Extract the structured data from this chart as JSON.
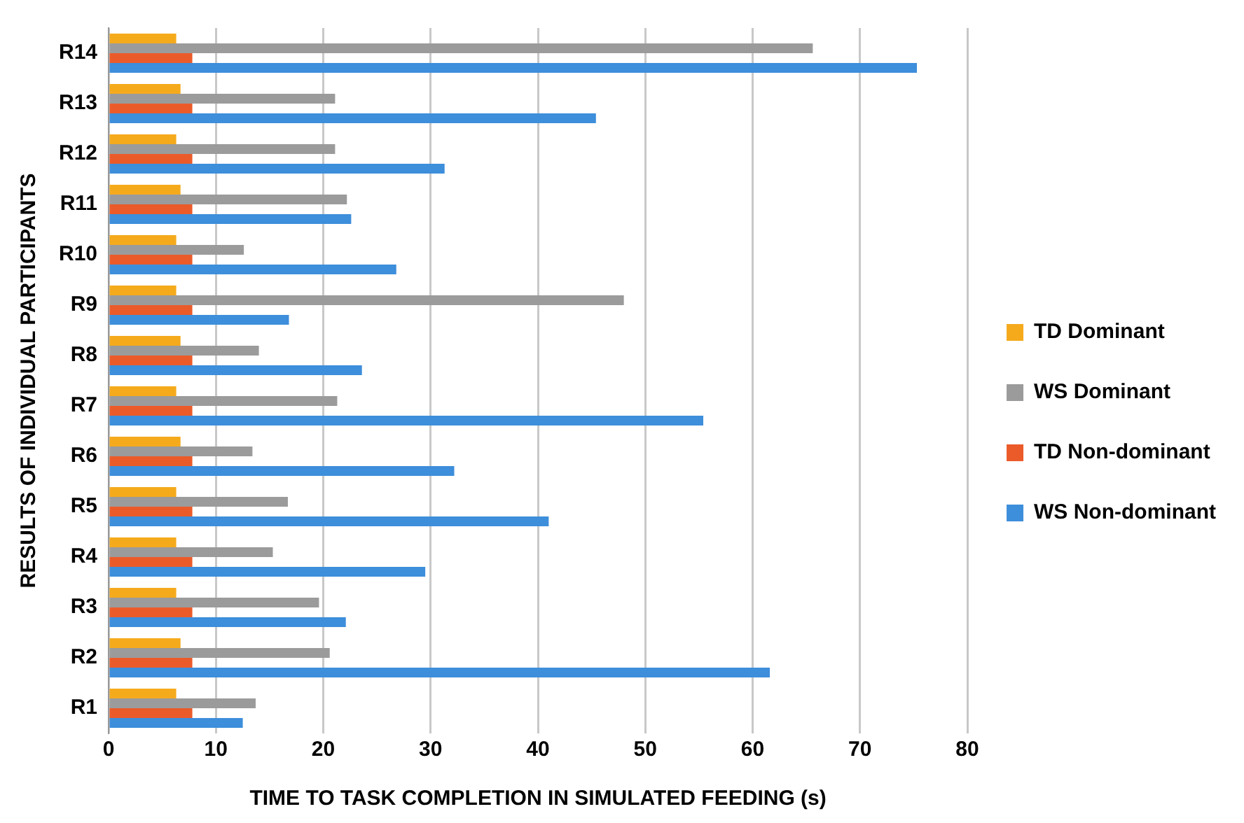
{
  "chart_data": {
    "type": "bar",
    "orientation": "horizontal",
    "xlabel": "TIME TO TASK COMPLETION IN SIMULATED FEEDING (s)",
    "ylabel": "RESULTS OF INDIVIDUAL PARTICIPANTS",
    "categories": [
      "R14",
      "R13",
      "R12",
      "R11",
      "R10",
      "R9",
      "R8",
      "R7",
      "R6",
      "R5",
      "R4",
      "R3",
      "R2",
      "R1"
    ],
    "series": [
      {
        "name": "TD Dominant",
        "color": "#f5aa1c",
        "values": [
          6.3,
          6.7,
          6.3,
          6.7,
          6.3,
          6.3,
          6.7,
          6.3,
          6.7,
          6.3,
          6.3,
          6.3,
          6.7,
          6.3
        ]
      },
      {
        "name": "WS Dominant",
        "color": "#9b9b9b",
        "values": [
          65.6,
          21.1,
          21.1,
          22.2,
          12.6,
          48.0,
          14.0,
          21.3,
          13.4,
          16.7,
          15.3,
          19.6,
          20.6,
          13.7
        ]
      },
      {
        "name": "TD Non-dominant",
        "color": "#eb5b2a",
        "values": [
          7.8,
          7.8,
          7.8,
          7.8,
          7.8,
          7.8,
          7.8,
          7.8,
          7.8,
          7.8,
          7.8,
          7.8,
          7.8,
          7.8
        ]
      },
      {
        "name": "WS Non-dominant",
        "color": "#3d8edb",
        "values": [
          75.3,
          45.4,
          31.3,
          22.6,
          26.8,
          16.8,
          23.6,
          55.4,
          32.2,
          41.0,
          29.5,
          22.1,
          61.6,
          12.5
        ]
      }
    ],
    "xlim": [
      0,
      80
    ],
    "xticks": [
      0,
      10,
      20,
      30,
      40,
      50,
      60,
      70,
      80
    ],
    "grid": "x",
    "legend": "right"
  }
}
